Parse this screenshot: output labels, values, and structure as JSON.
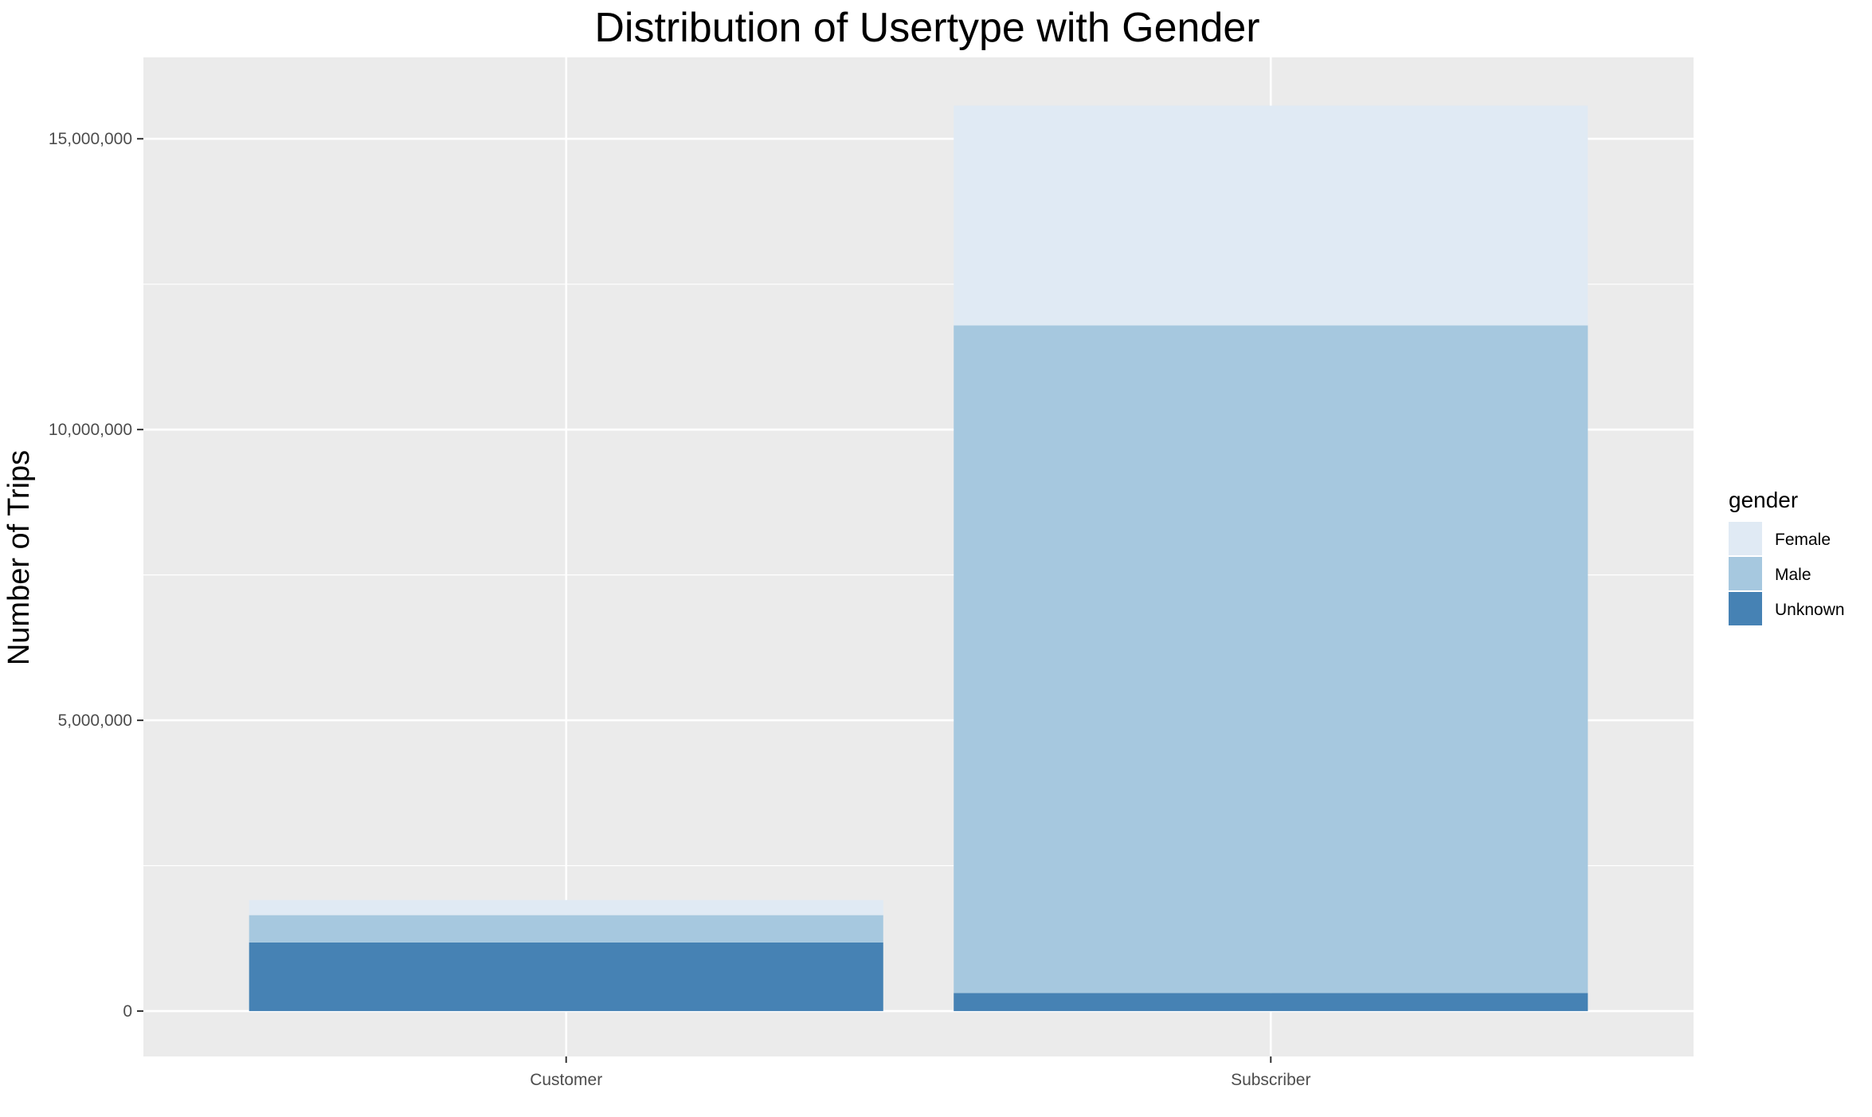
{
  "chart_data": {
    "type": "bar",
    "stacked": true,
    "title": "Distribution of Usertype with Gender",
    "xlabel": "",
    "ylabel": "Number of Trips",
    "categories": [
      "Customer",
      "Subscriber"
    ],
    "series": [
      {
        "name": "Unknown",
        "values": [
          1180000,
          310000
        ],
        "color": "#4682B4"
      },
      {
        "name": "Male",
        "values": [
          470000,
          11480000
        ],
        "color": "#A6C8DF"
      },
      {
        "name": "Female",
        "values": [
          260000,
          3780000
        ],
        "color": "#E0EAF4"
      }
    ],
    "ylim": [
      -780000,
      16400000
    ],
    "yticks": [
      0,
      5000000,
      10000000,
      15000000
    ],
    "ytick_labels": [
      "0",
      "5,000,000",
      "10,000,000",
      "15,000,000"
    ],
    "legend": {
      "title": "gender",
      "position": "right",
      "order": [
        "Female",
        "Male",
        "Unknown"
      ]
    },
    "grid": true,
    "panel_background": "#EBEBEB"
  }
}
